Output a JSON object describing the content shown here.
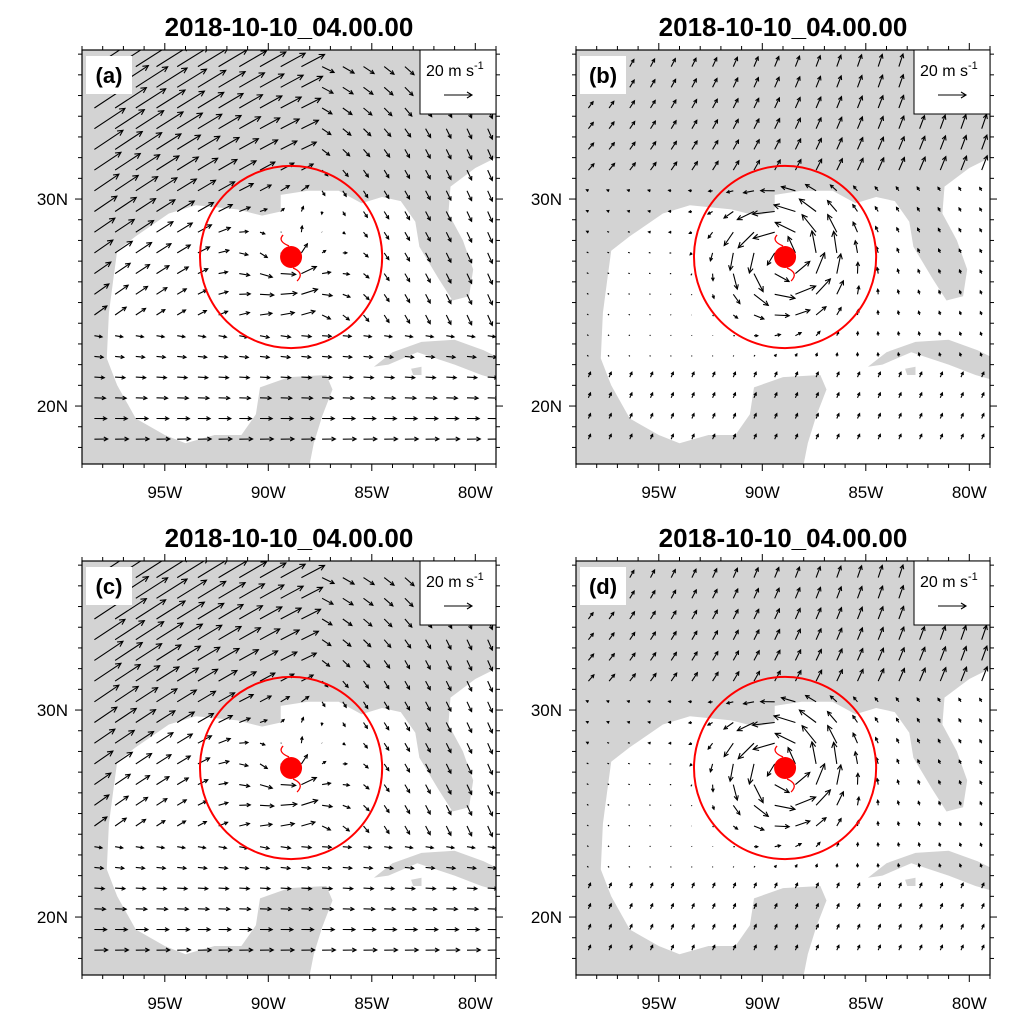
{
  "figure": {
    "panels": [
      {
        "id": "a",
        "title": "2018-10-10_04.00.00",
        "label": "(a)",
        "flow": "westerly"
      },
      {
        "id": "b",
        "title": "2018-10-10_04.00.00",
        "label": "(b)",
        "flow": "cyclonic"
      },
      {
        "id": "c",
        "title": "2018-10-10_04.00.00",
        "label": "(c)",
        "flow": "westerly"
      },
      {
        "id": "d",
        "title": "2018-10-10_04.00.00",
        "label": "(d)",
        "flow": "cyclonic"
      }
    ],
    "reference_vector": {
      "label": "20 m s",
      "exponent": "-1",
      "speed": 20
    },
    "x_ticks": [
      {
        "lon": -95,
        "label": "95W"
      },
      {
        "lon": -90,
        "label": "90W"
      },
      {
        "lon": -85,
        "label": "85W"
      },
      {
        "lon": -80,
        "label": "80W"
      }
    ],
    "y_ticks": [
      {
        "lat": 30,
        "label": "30N"
      },
      {
        "lat": 20,
        "label": "20N"
      }
    ],
    "extent": {
      "lon_min": -99,
      "lon_max": -79,
      "lat_min": 17.2,
      "lat_max": 37.2
    },
    "storm_center": {
      "lon": -88.9,
      "lat": 27.2
    },
    "circle_radius_deg": 4.4,
    "colors": {
      "land": "#d3d3d3",
      "ocean": "#ffffff",
      "storm": "#ff0000",
      "vector": "#000000"
    }
  }
}
